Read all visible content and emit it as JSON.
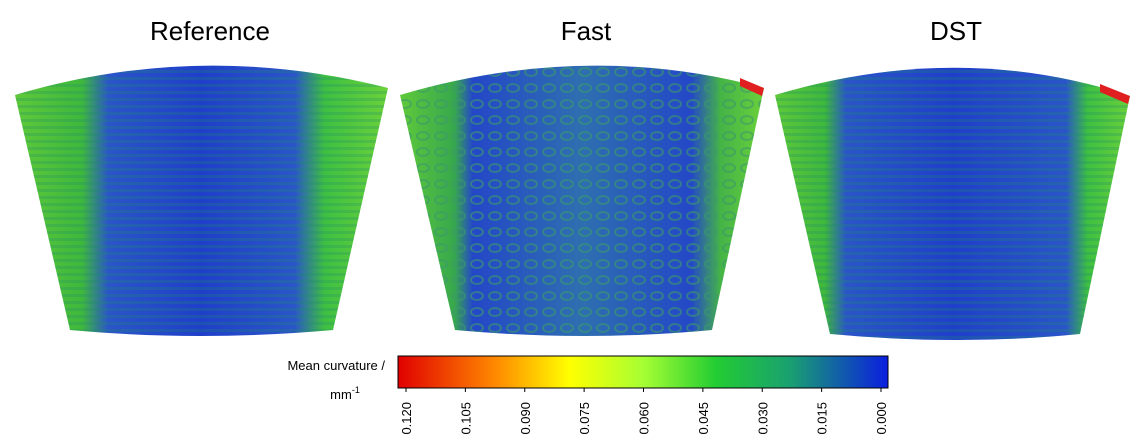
{
  "panels": [
    {
      "title": "Reference"
    },
    {
      "title": "Fast"
    },
    {
      "title": "DST"
    }
  ],
  "colorbar": {
    "label": "Mean curvature /",
    "unit": "mm",
    "unit_exponent": "-1",
    "lim": [
      0.12,
      0
    ],
    "ticks": [
      {
        "value": 0.12,
        "label": "0.120"
      },
      {
        "value": 0.105,
        "label": "0.105"
      },
      {
        "value": 0.09,
        "label": "0.090"
      },
      {
        "value": 0.075,
        "label": "0.075"
      },
      {
        "value": 0.06,
        "label": "0.060"
      },
      {
        "value": 0.045,
        "label": "0.045"
      },
      {
        "value": 0.03,
        "label": "0.030"
      },
      {
        "value": 0.015,
        "label": "0.015"
      },
      {
        "value": 0,
        "label": "0.000"
      }
    ]
  }
}
